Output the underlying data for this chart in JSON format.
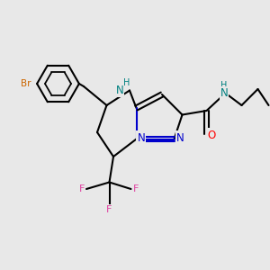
{
  "bg_color": "#e8e8e8",
  "bond_color": "#000000",
  "bond_width": 1.5,
  "N_color": "#0000cc",
  "NH_color": "#008080",
  "O_color": "#ff0000",
  "F_color": "#e040a0",
  "Br_color": "#cc6600",
  "fig_width": 3.0,
  "fig_height": 3.0,
  "dpi": 100,
  "xlim": [
    0,
    10
  ],
  "ylim": [
    0,
    10
  ]
}
